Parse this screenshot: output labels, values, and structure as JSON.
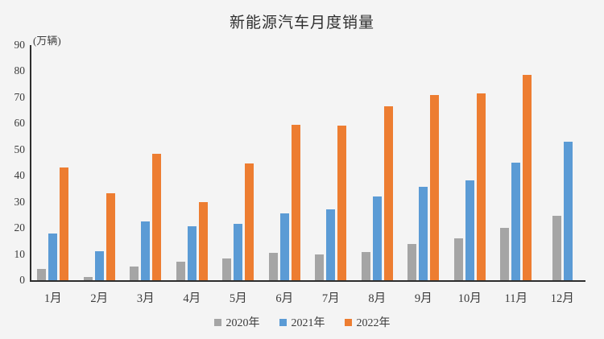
{
  "title": "新能源汽车月度销量",
  "y_axis_unit": "(万辆)",
  "colors": {
    "background": "#f4f4f4",
    "axis": "#2e2e2e",
    "text": "#3b3b3b",
    "series_2020": "#a5a5a5",
    "series_2021": "#5b9bd5",
    "series_2022": "#ed7d31"
  },
  "chart_data": {
    "type": "bar",
    "title": "新能源汽车月度销量",
    "ylabel": "(万辆)",
    "xlabel": "",
    "ylim": [
      0,
      90
    ],
    "y_ticks": [
      0,
      10,
      20,
      30,
      40,
      50,
      60,
      70,
      80,
      90
    ],
    "grid": false,
    "legend_position": "bottom",
    "categories": [
      "1月",
      "2月",
      "3月",
      "4月",
      "5月",
      "6月",
      "7月",
      "8月",
      "9月",
      "10月",
      "11月",
      "12月"
    ],
    "series": [
      {
        "name": "2020年",
        "color": "#a5a5a5",
        "values": [
          4.4,
          1.3,
          5.3,
          7.2,
          8.2,
          10.4,
          9.8,
          10.9,
          13.8,
          16.0,
          20.0,
          24.8
        ]
      },
      {
        "name": "2021年",
        "color": "#5b9bd5",
        "values": [
          17.9,
          11.0,
          22.6,
          20.6,
          21.7,
          25.6,
          27.1,
          32.1,
          35.7,
          38.3,
          45.0,
          53.1
        ]
      },
      {
        "name": "2022年",
        "color": "#ed7d31",
        "values": [
          43.1,
          33.4,
          48.4,
          29.9,
          44.7,
          59.6,
          59.3,
          66.6,
          70.8,
          71.4,
          78.6,
          null
        ]
      }
    ]
  }
}
